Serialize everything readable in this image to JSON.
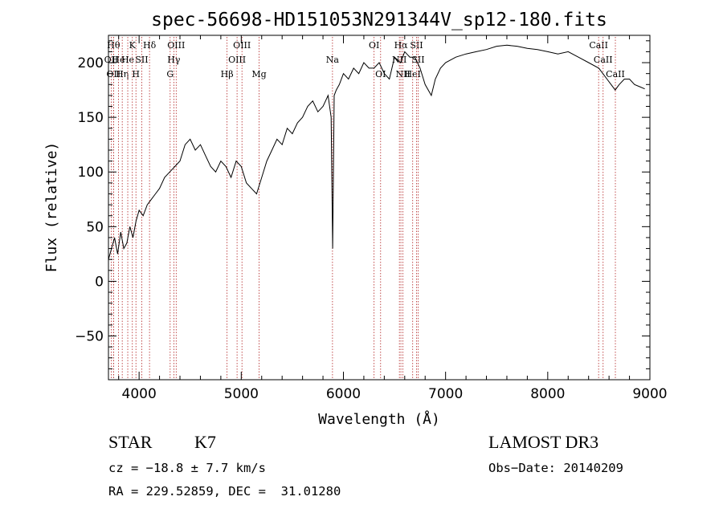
{
  "chart_data": {
    "type": "line",
    "title": "spec-56698-HD151053N291344V_sp12-180.fits",
    "xlabel": "Wavelength (Å)",
    "ylabel": "Flux (relative)",
    "xlim": [
      3700,
      9000
    ],
    "ylim": [
      -90,
      225
    ],
    "x_ticks": [
      4000,
      5000,
      6000,
      7000,
      8000,
      9000
    ],
    "y_ticks": [
      -50,
      0,
      50,
      100,
      150,
      200
    ],
    "grid": false,
    "line_color": "#000000",
    "marker_color": "#b22222",
    "series": [
      {
        "x": [
          3700,
          3730,
          3760,
          3790,
          3820,
          3850,
          3880,
          3910,
          3940,
          3970,
          4000,
          4040,
          4080,
          4120,
          4160,
          4200,
          4250,
          4300,
          4350,
          4400,
          4450,
          4500,
          4550,
          4600,
          4650,
          4700,
          4750,
          4800,
          4850,
          4900,
          4950,
          5000,
          5050,
          5100,
          5150,
          5200,
          5250,
          5300,
          5350,
          5400,
          5450,
          5500,
          5550,
          5600,
          5650,
          5700,
          5750,
          5800,
          5850,
          5880,
          5895,
          5910,
          5930,
          5960,
          6000,
          6050,
          6100,
          6150,
          6200,
          6250,
          6300,
          6350,
          6400,
          6450,
          6500,
          6560,
          6600,
          6650,
          6700,
          6750,
          6800,
          6860,
          6900,
          6950,
          7000,
          7100,
          7200,
          7300,
          7400,
          7500,
          7600,
          7700,
          7800,
          7900,
          8000,
          8100,
          8200,
          8300,
          8400,
          8500,
          8540,
          8580,
          8620,
          8660,
          8700,
          8750,
          8800,
          8850,
          8900,
          8950
        ],
        "y": [
          20,
          30,
          40,
          25,
          45,
          30,
          35,
          50,
          40,
          55,
          65,
          60,
          70,
          75,
          80,
          85,
          95,
          100,
          105,
          110,
          125,
          130,
          120,
          125,
          115,
          105,
          100,
          110,
          105,
          95,
          110,
          105,
          90,
          85,
          80,
          95,
          110,
          120,
          130,
          125,
          140,
          135,
          145,
          150,
          160,
          165,
          155,
          160,
          170,
          150,
          30,
          170,
          175,
          180,
          190,
          185,
          195,
          190,
          200,
          195,
          195,
          200,
          190,
          185,
          205,
          200,
          210,
          205,
          205,
          195,
          180,
          170,
          185,
          195,
          200,
          205,
          208,
          210,
          212,
          215,
          216,
          215,
          213,
          212,
          210,
          208,
          210,
          205,
          200,
          195,
          190,
          185,
          180,
          175,
          180,
          185,
          185,
          180,
          178,
          176
        ]
      }
    ],
    "line_markers": [
      {
        "wave": 3750,
        "row": 0,
        "label": "Hθ"
      },
      {
        "wave": 3727,
        "row": 1,
        "label": "OII"
      },
      {
        "wave": 3750,
        "row": 2,
        "label": "OII"
      },
      {
        "wave": 3798,
        "row": 1,
        "label": "He"
      },
      {
        "wave": 3835,
        "row": 2,
        "label": "Hη"
      },
      {
        "wave": 3889,
        "row": 1,
        "label": "He"
      },
      {
        "wave": 3934,
        "row": 0,
        "label": "K"
      },
      {
        "wave": 3969,
        "row": 2,
        "label": "H"
      },
      {
        "wave": 4026,
        "row": 1,
        "label": "SII"
      },
      {
        "wave": 4102,
        "row": 0,
        "label": "Hδ"
      },
      {
        "wave": 4304,
        "row": 2,
        "label": "G"
      },
      {
        "wave": 4340,
        "row": 1,
        "label": "Hγ"
      },
      {
        "wave": 4363,
        "row": 0,
        "label": "OIII"
      },
      {
        "wave": 4861,
        "row": 2,
        "label": "Hβ"
      },
      {
        "wave": 4959,
        "row": 1,
        "label": "OIII"
      },
      {
        "wave": 5007,
        "row": 0,
        "label": "OIII"
      },
      {
        "wave": 5175,
        "row": 2,
        "label": "Mg"
      },
      {
        "wave": 5893,
        "row": 1,
        "label": "Na"
      },
      {
        "wave": 6300,
        "row": 0,
        "label": "OI"
      },
      {
        "wave": 6364,
        "row": 2,
        "label": "OI"
      },
      {
        "wave": 6548,
        "row": 1,
        "label": "NII"
      },
      {
        "wave": 6563,
        "row": 0,
        "label": "Hα"
      },
      {
        "wave": 6583,
        "row": 2,
        "label": "NII"
      },
      {
        "wave": 6678,
        "row": 2,
        "label": "HeI"
      },
      {
        "wave": 6716,
        "row": 0,
        "label": "SII"
      },
      {
        "wave": 6731,
        "row": 1,
        "label": "SII"
      },
      {
        "wave": 8498,
        "row": 0,
        "label": "CaII"
      },
      {
        "wave": 8542,
        "row": 1,
        "label": "CaII"
      },
      {
        "wave": 8662,
        "row": 2,
        "label": "CaII"
      }
    ]
  },
  "info": {
    "object_class": "STAR",
    "subclass": "K7",
    "survey": "LAMOST DR3",
    "cz": "cz = −18.8 ± 7.7 km/s",
    "obs_date": "Obs−Date: 20140209",
    "coords": "RA = 229.52859, DEC =  31.01280"
  }
}
